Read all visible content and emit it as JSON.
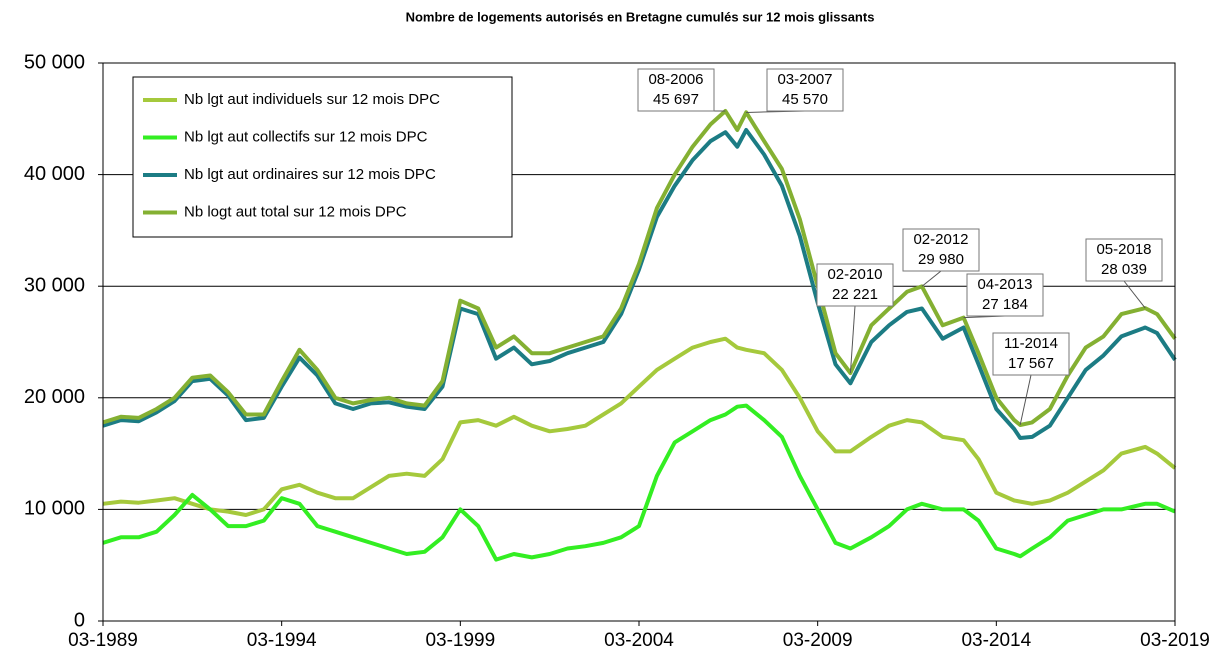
{
  "chart_data": {
    "type": "line",
    "title": "Nombre de logements autorisés en Bretagne cumulés sur 12 mois glissants",
    "x": [
      "03-1989",
      "09-1989",
      "03-1990",
      "09-1990",
      "03-1991",
      "09-1991",
      "03-1992",
      "09-1992",
      "03-1993",
      "09-1993",
      "03-1994",
      "09-1994",
      "03-1995",
      "09-1995",
      "03-1996",
      "09-1996",
      "03-1997",
      "09-1997",
      "03-1998",
      "09-1998",
      "03-1999",
      "09-1999",
      "03-2000",
      "09-2000",
      "03-2001",
      "09-2001",
      "03-2002",
      "09-2002",
      "03-2003",
      "09-2003",
      "03-2004",
      "09-2004",
      "03-2005",
      "09-2005",
      "03-2006",
      "08-2006",
      "12-2006",
      "03-2007",
      "09-2007",
      "03-2008",
      "09-2008",
      "03-2009",
      "09-2009",
      "02-2010",
      "09-2010",
      "03-2011",
      "09-2011",
      "02-2012",
      "09-2012",
      "04-2013",
      "09-2013",
      "03-2014",
      "09-2014",
      "11-2014",
      "03-2015",
      "09-2015",
      "03-2016",
      "09-2016",
      "03-2017",
      "09-2017",
      "05-2018",
      "09-2018",
      "03-2019"
    ],
    "series": [
      {
        "name": "Nb lgt aut individuels sur 12 mois DPC",
        "color": "#a5c93c",
        "values": [
          10500,
          10700,
          10600,
          10800,
          11000,
          10500,
          10000,
          9800,
          9500,
          10000,
          11800,
          12200,
          11500,
          11000,
          11000,
          12000,
          13000,
          13200,
          13000,
          14500,
          17800,
          18000,
          17500,
          18300,
          17500,
          17000,
          17200,
          17500,
          18500,
          19500,
          21000,
          22500,
          23500,
          24500,
          25000,
          25300,
          24500,
          24300,
          24000,
          22500,
          20000,
          17000,
          15200,
          15200,
          16500,
          17500,
          18000,
          17800,
          16500,
          16200,
          14500,
          11500,
          10800,
          10700,
          10500,
          10800,
          11500,
          12500,
          13500,
          15000,
          15600,
          15000,
          13700
        ]
      },
      {
        "name": "Nb lgt aut collectifs sur 12 mois DPC",
        "color": "#33ee22",
        "values": [
          7000,
          7500,
          7500,
          8000,
          9500,
          11300,
          10000,
          8500,
          8500,
          9000,
          11000,
          10500,
          8500,
          8000,
          7500,
          7000,
          6500,
          6000,
          6200,
          7500,
          10000,
          8500,
          5500,
          6000,
          5700,
          6000,
          6500,
          6700,
          7000,
          7500,
          8500,
          13000,
          16000,
          17000,
          18000,
          18500,
          19200,
          19300,
          18000,
          16500,
          13000,
          10000,
          7000,
          6500,
          7500,
          8500,
          10000,
          10500,
          10000,
          10000,
          9000,
          6500,
          6000,
          5800,
          6500,
          7500,
          9000,
          9500,
          10000,
          10000,
          10500,
          10500,
          9800
        ]
      },
      {
        "name": "Nb lgt aut ordinaires sur 12 mois DPC",
        "color": "#1c7c84",
        "values": [
          17500,
          18000,
          17900,
          18700,
          19700,
          21500,
          21700,
          20200,
          18000,
          18200,
          21000,
          23600,
          22000,
          19500,
          19000,
          19500,
          19600,
          19200,
          19000,
          21000,
          28000,
          27500,
          23500,
          24500,
          23000,
          23300,
          24000,
          24500,
          25000,
          27500,
          31500,
          36200,
          39000,
          41300,
          43000,
          43800,
          42500,
          44000,
          41800,
          39000,
          34500,
          28500,
          23000,
          21300,
          25000,
          26500,
          27700,
          28000,
          25300,
          26300,
          23000,
          19000,
          17200,
          16400,
          16500,
          17500,
          20000,
          22500,
          23800,
          25500,
          26300,
          25800,
          23400
        ]
      },
      {
        "name": "Nb logt aut total sur 12 mois DPC",
        "color": "#84b032",
        "values": [
          17800,
          18300,
          18200,
          19000,
          20000,
          21800,
          22000,
          20500,
          18500,
          18500,
          21500,
          24300,
          22500,
          20000,
          19500,
          19800,
          20000,
          19500,
          19300,
          21500,
          28700,
          28000,
          24500,
          25500,
          24000,
          24000,
          24500,
          25000,
          25500,
          28000,
          32000,
          37000,
          40000,
          42500,
          44500,
          45697,
          44000,
          45570,
          43000,
          40500,
          36000,
          30000,
          24000,
          22221,
          26500,
          28000,
          29500,
          29980,
          26500,
          27184,
          24000,
          20000,
          18000,
          17567,
          17800,
          19000,
          22000,
          24500,
          25500,
          27500,
          28039,
          27500,
          25300
        ]
      }
    ],
    "xlim": [
      "03-1989",
      "03-2019"
    ],
    "xticks": [
      "03-1989",
      "03-1994",
      "03-1999",
      "03-2004",
      "03-2009",
      "03-2014",
      "03-2019"
    ],
    "ylim": [
      0,
      50000
    ],
    "yticks": [
      0,
      {
        "value": 10000,
        "label": "10 000"
      },
      {
        "value": 20000,
        "label": "20 000"
      },
      {
        "value": 30000,
        "label": "30 000"
      },
      {
        "value": 40000,
        "label": "40 000"
      },
      {
        "value": 50000,
        "label": "50 000"
      }
    ],
    "grid": true,
    "legend": "top-left",
    "annotations": [
      {
        "x": "08-2006",
        "y": 45697,
        "label": "45 697"
      },
      {
        "x": "03-2007",
        "y": 45570,
        "label": "45 570"
      },
      {
        "x": "02-2010",
        "y": 22221,
        "label": "22 221"
      },
      {
        "x": "02-2012",
        "y": 29980,
        "label": "29 980"
      },
      {
        "x": "04-2013",
        "y": 27184,
        "label": "27 184"
      },
      {
        "x": "11-2014",
        "y": 17567,
        "label": "17 567"
      },
      {
        "x": "05-2018",
        "y": 28039,
        "label": "28 039"
      }
    ]
  }
}
